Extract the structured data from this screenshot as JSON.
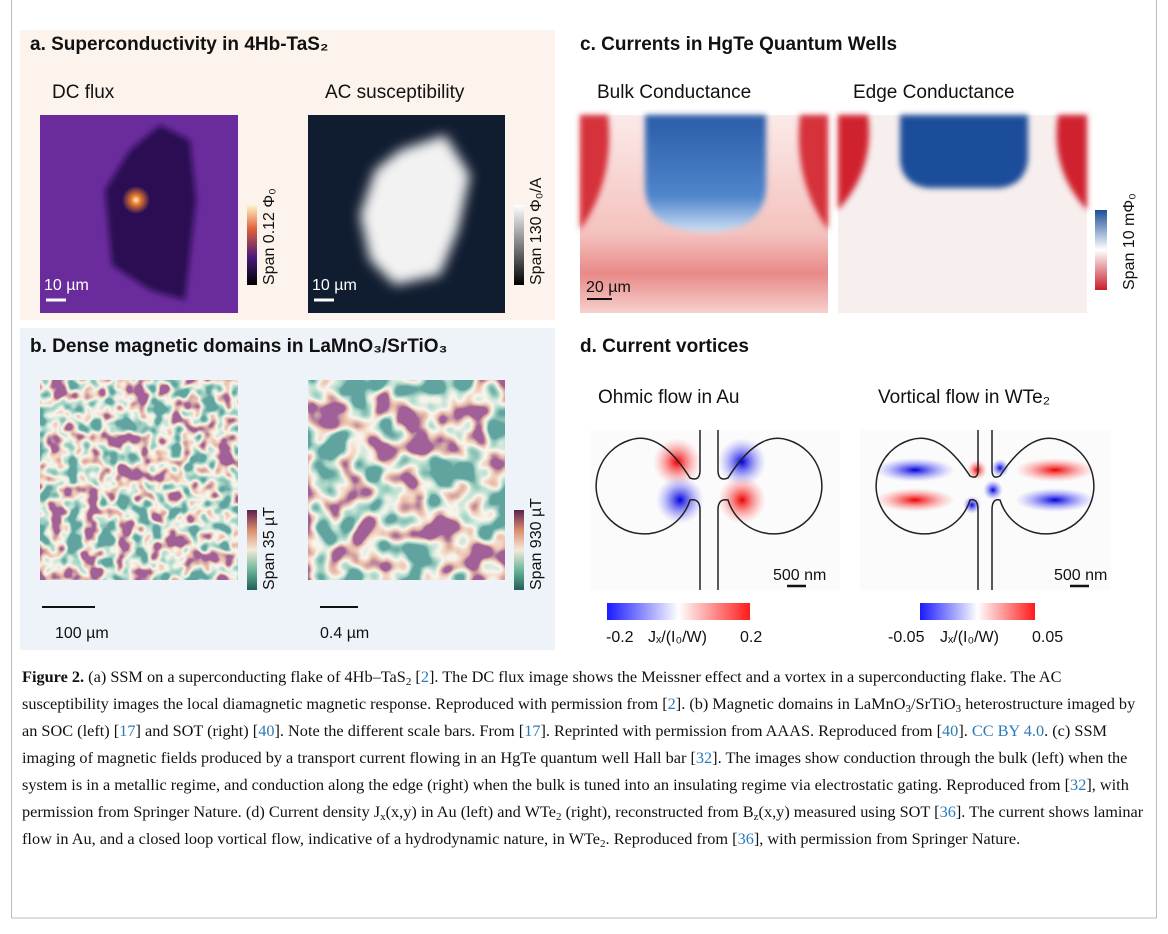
{
  "panels": [
    {
      "title": "a. Superconductivity in 4Hb-TaS₂",
      "images": [
        {
          "label": "DC flux",
          "scale_bar": "10 µm",
          "colorbar": "Span 0.12 Φ₀"
        },
        {
          "label": "AC susceptibility",
          "scale_bar": "10 µm",
          "colorbar": "Span 130 Φ₀/A"
        }
      ]
    },
    {
      "title": "b. Dense magnetic domains in LaMnO₃/SrTiO₃",
      "images": [
        {
          "scale_bar": "100 µm",
          "colorbar": "Span 35 µT"
        },
        {
          "scale_bar": "0.4 µm",
          "colorbar": "Span 930 µT"
        }
      ]
    },
    {
      "title": "c. Currents in HgTe Quantum Wells",
      "images": [
        {
          "label": "Bulk Conductance",
          "scale_bar": "20 µm"
        },
        {
          "label": "Edge Conductance",
          "colorbar": "Span 10 mΦ₀"
        }
      ]
    },
    {
      "title": "d. Current vortices",
      "images": [
        {
          "label": "Ohmic flow in Au",
          "scale_bar": "500 nm",
          "colorbar_min": "-0.2",
          "colorbar_label": "Jₓ/(I₀/W)",
          "colorbar_max": "0.2"
        },
        {
          "label": "Vortical flow in WTe₂",
          "scale_bar": "500 nm",
          "colorbar_min": "-0.05",
          "colorbar_label": "Jₓ/(I₀/W)",
          "colorbar_max": "0.05"
        }
      ]
    }
  ],
  "caption": {
    "label": "Figure 2.",
    "link_color": "#2a7ab8",
    "segments": [
      " (a) SSM on a superconducting flake of 4Hb–TaS",
      {
        "text": "2",
        "sub": true
      },
      " [",
      {
        "text": "2",
        "link": true
      },
      "]. The DC flux image shows the Meissner effect and a vortex in a superconducting flake. The AC susceptibility images the local diamagnetic magnetic response. Reproduced with permission from [",
      {
        "text": "2",
        "link": true
      },
      "]. (b) Magnetic domains in LaMnO",
      {
        "text": "3",
        "sub": true
      },
      "/SrTiO",
      {
        "text": "3",
        "sub": true
      },
      " heterostructure imaged by an SOC (left) [",
      {
        "text": "17",
        "link": true
      },
      "] and SOT (right) [",
      {
        "text": "40",
        "link": true
      },
      "]. Note the different scale bars. From [",
      {
        "text": "17",
        "link": true
      },
      "]. Reprinted with permission from AAAS. Reproduced from [",
      {
        "text": "40",
        "link": true
      },
      "]. ",
      {
        "text": "CC BY 4.0",
        "link": true
      },
      ". (c) SSM imaging of magnetic fields produced by a transport current flowing in an HgTe quantum well Hall bar [",
      {
        "text": "32",
        "link": true
      },
      "]. The images show conduction through the bulk (left) when the system is in a metallic regime, and conduction along the edge (right) when the bulk is tuned into an insulating regime via electrostatic gating. Reproduced from [",
      {
        "text": "32",
        "link": true
      },
      "], with permission from Springer Nature. (d) Current density J",
      {
        "text": "x",
        "sub": true
      },
      "(x,y) in Au (left) and WTe",
      {
        "text": "2",
        "sub": true
      },
      " (right), reconstructed from B",
      {
        "text": "z",
        "sub": true
      },
      "(x,y) measured using SOT [",
      {
        "text": "36",
        "link": true
      },
      "]. The current shows laminar flow in Au, and a closed loop vortical flow, indicative of a hydrodynamic nature, in WTe",
      {
        "text": "2",
        "sub": true
      },
      ". Reproduced from [",
      {
        "text": "36",
        "link": true
      },
      "], with permission from Springer Nature."
    ]
  }
}
